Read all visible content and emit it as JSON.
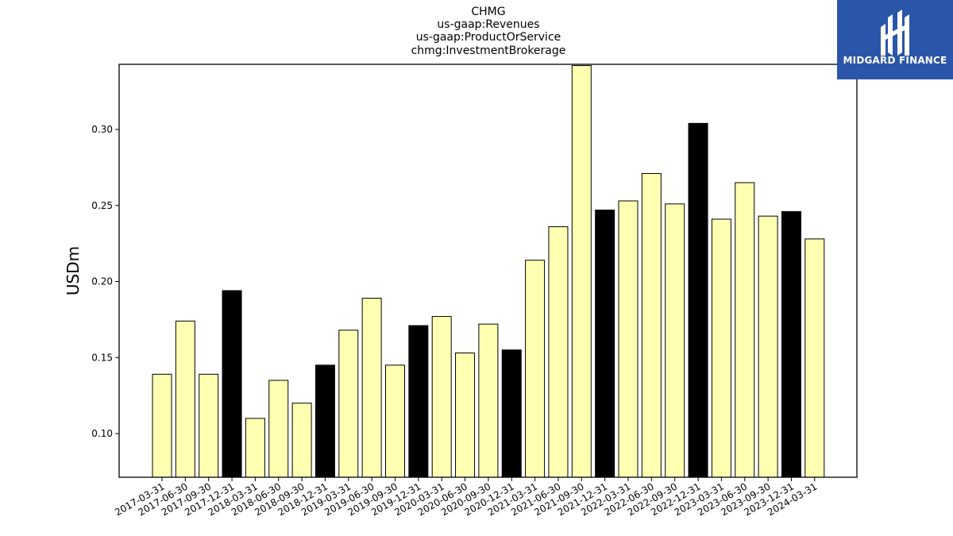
{
  "chart_data": {
    "type": "bar",
    "title_lines": [
      "CHMG",
      "us-gaap:Revenues",
      "us-gaap:ProductOrService",
      "chmg:InvestmentBrokerage"
    ],
    "ylabel": "USDm",
    "xlabel": "",
    "ylim": [
      0.071,
      0.342
    ],
    "yticks": [
      "0.10",
      "0.15",
      "0.20",
      "0.25",
      "0.30"
    ],
    "categories": [
      "2017-03-31",
      "2017-06-30",
      "2017-09-30",
      "2017-12-31",
      "2018-03-31",
      "2018-06-30",
      "2018-09-30",
      "2018-12-31",
      "2019-03-31",
      "2019-06-30",
      "2019-09-30",
      "2019-12-31",
      "2020-03-31",
      "2020-06-30",
      "2020-09-30",
      "2020-12-31",
      "2021-03-31",
      "2021-06-30",
      "2021-09-30",
      "2021-12-31",
      "2022-03-31",
      "2022-06-30",
      "2022-09-30",
      "2022-12-31",
      "2023-03-31",
      "2023-06-30",
      "2023-09-30",
      "2023-12-31",
      "2024-03-31"
    ],
    "values": [
      0.139,
      0.174,
      0.139,
      0.194,
      0.11,
      0.135,
      0.12,
      0.145,
      0.168,
      0.189,
      0.145,
      0.171,
      0.177,
      0.153,
      0.172,
      0.155,
      0.214,
      0.236,
      0.342,
      0.247,
      0.253,
      0.271,
      0.251,
      0.304,
      0.241,
      0.265,
      0.243,
      0.246,
      0.228
    ],
    "highlight_quarter_end": "12-31",
    "colors": {
      "normal": "#ffffb2",
      "highlight": "#000000",
      "edge": "#000000"
    },
    "grid": false
  },
  "logo": {
    "text": "MIDGARD FINANCE",
    "color": "#2a55a8"
  }
}
